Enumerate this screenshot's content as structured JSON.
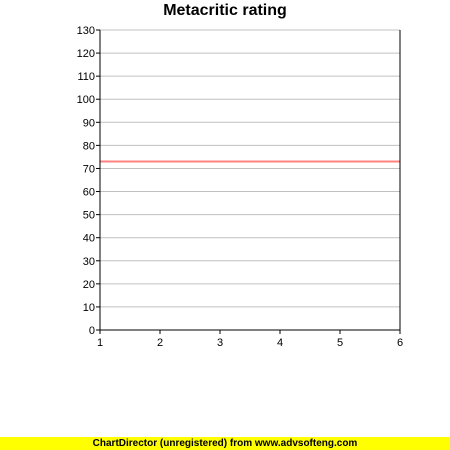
{
  "chart_data": {
    "type": "line",
    "title": "Metacritic rating",
    "xlabel": "",
    "ylabel": "",
    "x": [
      1,
      2,
      3,
      4,
      5,
      6
    ],
    "xlim": [
      1,
      6
    ],
    "ylim": [
      0,
      130
    ],
    "yticks": [
      0,
      10,
      20,
      30,
      40,
      50,
      60,
      70,
      80,
      90,
      100,
      110,
      120,
      130
    ],
    "xticks": [
      1,
      2,
      3,
      4,
      5,
      6
    ],
    "grid": true,
    "series": [
      {
        "values": [
          73,
          73,
          73,
          73,
          73,
          73
        ],
        "color": "#ff8080"
      }
    ]
  },
  "footer": {
    "text": "ChartDirector (unregistered) from www.advsofteng.com",
    "background": "#ffff00"
  },
  "colors": {
    "grid": "#c0c0c0",
    "axis": "#000000"
  }
}
